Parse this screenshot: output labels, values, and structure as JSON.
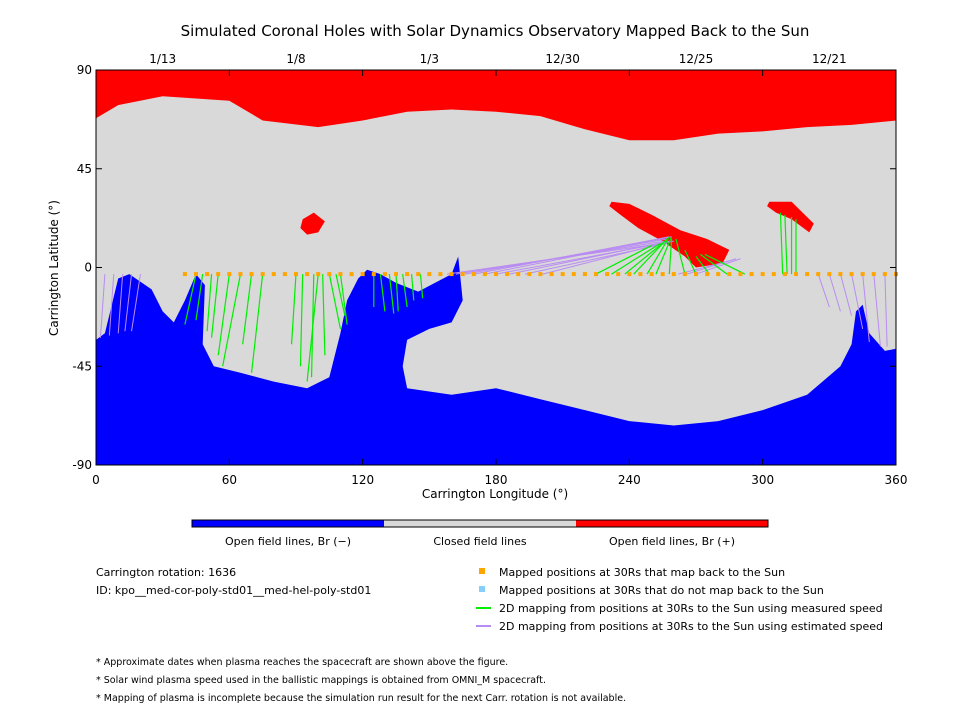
{
  "colors": {
    "open_negative": "#0000ff",
    "closed": "#d9d9d9",
    "open_positive": "#ff0000",
    "mapped_orange": "#ffa500",
    "unmapped_blue": "#87cefa",
    "measured_green": "#00ee00",
    "estimated_purple": "#b98cf2"
  },
  "chart_data": {
    "type": "heatmap",
    "title": "Simulated Coronal Holes with Solar Dynamics Observatory Mapped Back to the Sun",
    "xlabel": "Carrington Longitude (°)",
    "ylabel": "Carrington Latitude (°)",
    "xlim": [
      0,
      360
    ],
    "ylim": [
      -90,
      90
    ],
    "x_ticks": [
      0,
      60,
      120,
      180,
      240,
      300,
      360
    ],
    "y_ticks": [
      90,
      45,
      0,
      -45,
      -90
    ],
    "date_ticks": [
      {
        "lon": 30,
        "label": "1/13"
      },
      {
        "lon": 90,
        "label": "1/8"
      },
      {
        "lon": 150,
        "label": "1/3"
      },
      {
        "lon": 210,
        "label": "12/30"
      },
      {
        "lon": 270,
        "label": "12/25"
      },
      {
        "lon": 330,
        "label": "12/21"
      }
    ],
    "colorbar": [
      {
        "label": "Open field lines, Br (−)",
        "color": "#0000ff"
      },
      {
        "label": "Closed field lines",
        "color": "#d9d9d9"
      },
      {
        "label": "Open field lines, Br (+)",
        "color": "#ff0000"
      }
    ],
    "regions": {
      "north_positive_boundary": [
        [
          0,
          68
        ],
        [
          10,
          74
        ],
        [
          30,
          78
        ],
        [
          60,
          76
        ],
        [
          75,
          67
        ],
        [
          100,
          64
        ],
        [
          120,
          67
        ],
        [
          140,
          71
        ],
        [
          160,
          72
        ],
        [
          180,
          71
        ],
        [
          200,
          69
        ],
        [
          220,
          63
        ],
        [
          240,
          58
        ],
        [
          260,
          58
        ],
        [
          280,
          61
        ],
        [
          300,
          62
        ],
        [
          320,
          64
        ],
        [
          340,
          65
        ],
        [
          360,
          67
        ]
      ],
      "south_negative_boundary": [
        [
          0,
          -33
        ],
        [
          4,
          -30
        ],
        [
          10,
          -5
        ],
        [
          15,
          -3
        ],
        [
          25,
          -10
        ],
        [
          30,
          -20
        ],
        [
          35,
          -25
        ],
        [
          40,
          -15
        ],
        [
          45,
          -3
        ],
        [
          49,
          -8
        ],
        [
          48,
          -35
        ],
        [
          53,
          -45
        ],
        [
          65,
          -48
        ],
        [
          80,
          -52
        ],
        [
          95,
          -55
        ],
        [
          105,
          -50
        ],
        [
          110,
          -30
        ],
        [
          113,
          -15
        ],
        [
          118,
          -5
        ],
        [
          122,
          -1
        ],
        [
          128,
          -3
        ],
        [
          135,
          -7
        ],
        [
          145,
          -11
        ],
        [
          160,
          -3
        ],
        [
          163,
          5
        ],
        [
          165,
          -15
        ],
        [
          160,
          -25
        ],
        [
          150,
          -28
        ],
        [
          140,
          -33
        ],
        [
          138,
          -45
        ],
        [
          140,
          -55
        ],
        [
          160,
          -58
        ],
        [
          180,
          -55
        ],
        [
          200,
          -60
        ],
        [
          220,
          -65
        ],
        [
          240,
          -70
        ],
        [
          260,
          -72
        ],
        [
          280,
          -70
        ],
        [
          300,
          -65
        ],
        [
          320,
          -58
        ],
        [
          335,
          -45
        ],
        [
          340,
          -35
        ],
        [
          342,
          -20
        ],
        [
          345,
          -17
        ],
        [
          348,
          -30
        ],
        [
          355,
          -38
        ],
        [
          360,
          -37
        ]
      ],
      "positive_islands": [
        [
          [
            93,
            22
          ],
          [
            98,
            25
          ],
          [
            103,
            21
          ],
          [
            100,
            16
          ],
          [
            95,
            15
          ],
          [
            92,
            18
          ]
        ],
        [
          [
            232,
            30
          ],
          [
            240,
            29
          ],
          [
            250,
            24
          ],
          [
            263,
            17
          ],
          [
            275,
            13
          ],
          [
            285,
            8
          ],
          [
            282,
            2
          ],
          [
            270,
            0
          ],
          [
            265,
            5
          ],
          [
            255,
            12
          ],
          [
            244,
            18
          ],
          [
            236,
            24
          ],
          [
            231,
            28
          ]
        ],
        [
          [
            303,
            30
          ],
          [
            313,
            30
          ],
          [
            323,
            20
          ],
          [
            321,
            16
          ],
          [
            313,
            22
          ],
          [
            306,
            25
          ],
          [
            302,
            28
          ]
        ]
      ]
    },
    "mapped_positions_30Rs": {
      "latitude": -3,
      "longitudes": [
        40,
        45,
        50,
        55,
        60,
        65,
        70,
        75,
        80,
        85,
        90,
        95,
        100,
        105,
        110,
        115,
        120,
        125,
        130,
        135,
        140,
        145,
        150,
        155,
        160,
        165,
        170,
        175,
        180,
        185,
        190,
        195,
        200,
        205,
        210,
        215,
        220,
        225,
        230,
        235,
        240,
        245,
        250,
        255,
        260,
        265,
        270,
        275,
        280,
        285,
        290,
        295,
        300,
        305,
        310,
        315,
        320,
        325,
        330,
        335,
        340,
        345,
        350,
        355,
        360
      ]
    },
    "mapping_lines_measured": [
      [
        [
          45,
          -3
        ],
        [
          40,
          -26
        ]
      ],
      [
        [
          48,
          -3
        ],
        [
          45,
          -24
        ]
      ],
      [
        [
          52,
          -3
        ],
        [
          50,
          -29
        ]
      ],
      [
        [
          55,
          -3
        ],
        [
          52,
          -32
        ]
      ],
      [
        [
          60,
          -3
        ],
        [
          55,
          -40
        ]
      ],
      [
        [
          65,
          -3
        ],
        [
          57,
          -45
        ]
      ],
      [
        [
          70,
          -3
        ],
        [
          66,
          -35
        ]
      ],
      [
        [
          75,
          -3
        ],
        [
          70,
          -48
        ]
      ],
      [
        [
          90,
          -3
        ],
        [
          88,
          -35
        ]
      ],
      [
        [
          93,
          -3
        ],
        [
          92,
          -45
        ]
      ],
      [
        [
          98,
          -3
        ],
        [
          97,
          -50
        ]
      ],
      [
        [
          100,
          -3
        ],
        [
          95,
          -52
        ]
      ],
      [
        [
          102,
          -3
        ],
        [
          103,
          -40
        ]
      ],
      [
        [
          105,
          -3
        ],
        [
          110,
          -28
        ]
      ],
      [
        [
          108,
          -3
        ],
        [
          112,
          -22
        ]
      ],
      [
        [
          110,
          -3
        ],
        [
          113,
          -26
        ]
      ],
      [
        [
          125,
          -3
        ],
        [
          125,
          -18
        ]
      ],
      [
        [
          128,
          -3
        ],
        [
          130,
          -20
        ]
      ],
      [
        [
          132,
          -3
        ],
        [
          134,
          -21
        ]
      ],
      [
        [
          135,
          -3
        ],
        [
          136,
          -20
        ]
      ],
      [
        [
          138,
          -3
        ],
        [
          140,
          -18
        ]
      ],
      [
        [
          142,
          -3
        ],
        [
          143,
          -15
        ]
      ],
      [
        [
          146,
          -3
        ],
        [
          147,
          -14
        ]
      ],
      [
        [
          225,
          -3
        ],
        [
          250,
          10
        ]
      ],
      [
        [
          232,
          -3
        ],
        [
          254,
          11
        ]
      ],
      [
        [
          238,
          -3
        ],
        [
          256,
          12
        ]
      ],
      [
        [
          242,
          -3
        ],
        [
          257,
          13
        ]
      ],
      [
        [
          248,
          -3
        ],
        [
          258,
          14
        ]
      ],
      [
        [
          252,
          -3
        ],
        [
          259,
          14
        ]
      ],
      [
        [
          258,
          -3
        ],
        [
          259,
          13
        ]
      ],
      [
        [
          265,
          -3
        ],
        [
          261,
          13
        ]
      ],
      [
        [
          270,
          -3
        ],
        [
          265,
          8
        ]
      ],
      [
        [
          276,
          -3
        ],
        [
          270,
          5
        ]
      ],
      [
        [
          284,
          -3
        ],
        [
          272,
          6
        ]
      ],
      [
        [
          292,
          -3
        ],
        [
          274,
          6
        ]
      ],
      [
        [
          309,
          -3
        ],
        [
          308,
          25
        ]
      ],
      [
        [
          311,
          -3
        ],
        [
          310,
          24
        ]
      ],
      [
        [
          313,
          -3
        ],
        [
          313,
          23
        ]
      ],
      [
        [
          315,
          -3
        ],
        [
          315,
          22
        ]
      ]
    ],
    "mapping_lines_estimated": [
      [
        [
          0,
          -3
        ],
        [
          0,
          -33
        ]
      ],
      [
        [
          4,
          -3
        ],
        [
          2,
          -32
        ]
      ],
      [
        [
          8,
          -3
        ],
        [
          6,
          -31
        ]
      ],
      [
        [
          12,
          -3
        ],
        [
          10,
          -30
        ]
      ],
      [
        [
          16,
          -3
        ],
        [
          13,
          -29
        ]
      ],
      [
        [
          20,
          -3
        ],
        [
          16,
          -29
        ]
      ],
      [
        [
          158,
          -3
        ],
        [
          255,
          11
        ]
      ],
      [
        [
          162,
          -3
        ],
        [
          256,
          12
        ]
      ],
      [
        [
          166,
          -3
        ],
        [
          257,
          13
        ]
      ],
      [
        [
          170,
          -3
        ],
        [
          258,
          14
        ]
      ],
      [
        [
          175,
          -3
        ],
        [
          259,
          14
        ]
      ],
      [
        [
          180,
          -3
        ],
        [
          260,
          12
        ]
      ],
      [
        [
          186,
          -3
        ],
        [
          258,
          12
        ]
      ],
      [
        [
          193,
          -3
        ],
        [
          257,
          11
        ]
      ],
      [
        [
          201,
          -3
        ],
        [
          255,
          11
        ]
      ],
      [
        [
          262,
          -3
        ],
        [
          285,
          3
        ]
      ],
      [
        [
          266,
          -3
        ],
        [
          288,
          4
        ]
      ],
      [
        [
          270,
          -3
        ],
        [
          290,
          4
        ]
      ],
      [
        [
          325,
          -3
        ],
        [
          330,
          -18
        ]
      ],
      [
        [
          330,
          -3
        ],
        [
          335,
          -20
        ]
      ],
      [
        [
          335,
          -3
        ],
        [
          340,
          -22
        ]
      ],
      [
        [
          340,
          -3
        ],
        [
          345,
          -28
        ]
      ],
      [
        [
          345,
          -3
        ],
        [
          348,
          -34
        ]
      ],
      [
        [
          350,
          -3
        ],
        [
          353,
          -36
        ]
      ],
      [
        [
          355,
          -3
        ],
        [
          356,
          -36
        ]
      ],
      [
        [
          360,
          -3
        ],
        [
          360,
          -37
        ]
      ]
    ]
  },
  "info": {
    "rotation": "Carrington rotation: 1636",
    "id": "ID: kpo__med-cor-poly-std01__med-hel-poly-std01"
  },
  "legend": {
    "mapped": "Mapped positions at 30Rs that map back to the Sun",
    "unmapped": "Mapped positions at 30Rs that do not map back to the Sun",
    "measured": "2D mapping from positions at 30Rs to the Sun using measured speed",
    "estimated": "2D mapping from positions at 30Rs to the Sun using estimated speed"
  },
  "notes": [
    "* Approximate dates when plasma reaches the spacecraft are shown above the figure.",
    "* Solar wind plasma speed used in the ballistic mappings is obtained from OMNI_M spacecraft.",
    "* Mapping of plasma is incomplete because the simulation run result for the next Carr. rotation is not available."
  ]
}
